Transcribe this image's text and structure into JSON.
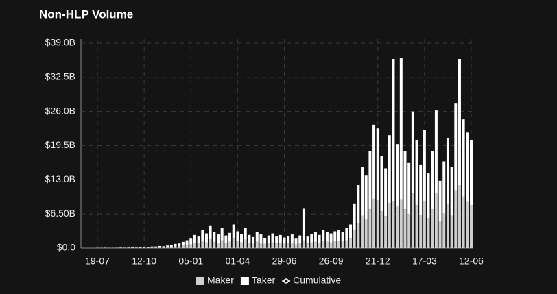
{
  "chart_data": {
    "type": "stacked_bar",
    "title": "Non-HLP Volume",
    "categories": [
      "19-07",
      null,
      null,
      null,
      null,
      null,
      null,
      null,
      null,
      null,
      null,
      null,
      "12-10",
      null,
      null,
      null,
      null,
      null,
      null,
      null,
      null,
      null,
      null,
      null,
      "05-01",
      null,
      null,
      null,
      null,
      null,
      null,
      null,
      null,
      null,
      null,
      null,
      "01-04",
      null,
      null,
      null,
      null,
      null,
      null,
      null,
      null,
      null,
      null,
      null,
      "29-06",
      null,
      null,
      null,
      null,
      null,
      null,
      null,
      null,
      null,
      null,
      null,
      "26-09",
      null,
      null,
      null,
      null,
      null,
      null,
      null,
      null,
      null,
      null,
      null,
      "21-12",
      null,
      null,
      null,
      null,
      null,
      null,
      null,
      null,
      null,
      null,
      null,
      "17-03",
      null,
      null,
      null,
      null,
      null,
      null,
      null,
      null,
      null,
      null,
      null,
      "12-06"
    ],
    "series": [
      {
        "name": "Maker",
        "color": "#cfcfcf",
        "values": [
          0.02,
          0.02,
          0.03,
          0.02,
          0.02,
          0.03,
          0.04,
          0.03,
          0.04,
          0.05,
          0.04,
          0.06,
          0.08,
          0.1,
          0.12,
          0.12,
          0.16,
          0.14,
          0.2,
          0.24,
          0.32,
          0.36,
          0.48,
          0.6,
          0.7,
          1.0,
          0.9,
          1.4,
          1.1,
          1.7,
          1.2,
          1.0,
          1.5,
          1.0,
          1.2,
          1.8,
          1.3,
          1.1,
          1.6,
          1.0,
          0.8,
          1.2,
          1.0,
          0.8,
          1.0,
          1.1,
          0.9,
          1.0,
          0.8,
          0.9,
          1.0,
          0.7,
          1.0,
          1.5,
          0.9,
          1.1,
          1.2,
          1.0,
          1.4,
          1.2,
          1.1,
          1.3,
          1.4,
          1.2,
          1.5,
          1.8,
          3.4,
          4.8,
          6.2,
          5.5,
          7.4,
          9.4,
          9.1,
          7.0,
          6.1,
          8.6,
          9.0,
          7.9,
          9.2,
          7.4,
          6.5,
          10.4,
          8.2,
          6.3,
          9.0,
          5.7,
          7.4,
          10.5,
          5.1,
          6.6,
          8.4,
          6.2,
          11.0,
          12.0,
          9.8,
          8.8,
          8.2
        ]
      },
      {
        "name": "Taker",
        "color": "#ffffff",
        "values": [
          0.03,
          0.03,
          0.05,
          0.04,
          0.03,
          0.04,
          0.06,
          0.05,
          0.06,
          0.07,
          0.06,
          0.09,
          0.12,
          0.15,
          0.18,
          0.18,
          0.24,
          0.21,
          0.3,
          0.36,
          0.48,
          0.54,
          0.72,
          0.9,
          1.1,
          1.5,
          1.3,
          2.1,
          1.7,
          2.5,
          1.9,
          1.6,
          2.3,
          1.4,
          1.7,
          2.7,
          1.9,
          1.6,
          2.3,
          1.5,
          1.3,
          1.8,
          1.6,
          1.1,
          1.4,
          1.7,
          1.3,
          1.5,
          1.2,
          1.4,
          1.6,
          1.1,
          1.4,
          6.0,
          1.3,
          1.6,
          1.9,
          1.5,
          2.0,
          1.8,
          1.7,
          1.9,
          2.1,
          1.8,
          2.3,
          2.7,
          5.1,
          7.2,
          9.3,
          8.3,
          11.1,
          14.1,
          13.7,
          10.5,
          9.1,
          12.9,
          27.0,
          11.9,
          27.0,
          11.1,
          9.7,
          15.6,
          12.3,
          9.5,
          13.5,
          8.5,
          11.1,
          15.7,
          7.7,
          9.9,
          12.6,
          9.3,
          16.5,
          24.0,
          14.7,
          13.2,
          12.3
        ]
      },
      {
        "name": "Cumulative",
        "color": "#ffffff",
        "style": "line",
        "visible": false
      }
    ],
    "ylim": [
      0,
      39
    ],
    "yticks": [
      {
        "value": 0,
        "label": "$0.0"
      },
      {
        "value": 6.5,
        "label": "$6.50B"
      },
      {
        "value": 13,
        "label": "$13.0B"
      },
      {
        "value": 19.5,
        "label": "$19.5B"
      },
      {
        "value": 26,
        "label": "$26.0B"
      },
      {
        "value": 32.5,
        "label": "$32.5B"
      },
      {
        "value": 39,
        "label": "$39.0B"
      }
    ],
    "grid": true,
    "legend": "bottom"
  }
}
